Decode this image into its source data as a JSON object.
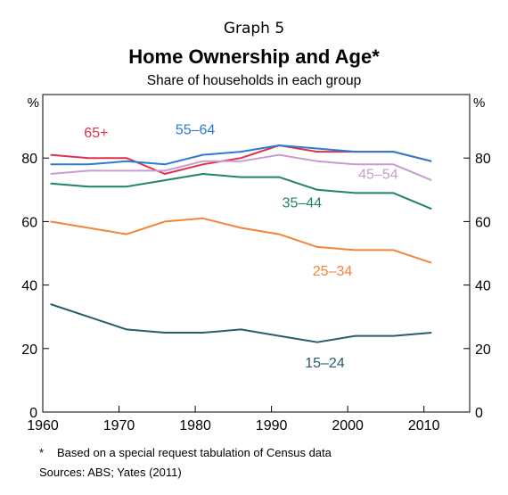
{
  "graph_label": "Graph 5",
  "chart_data": {
    "type": "line",
    "title": "Home Ownership and Age*",
    "subtitle": "Share of households in each group",
    "unit_left": "%",
    "unit_right": "%",
    "xlim": [
      1960,
      2016
    ],
    "ylim": [
      0,
      100
    ],
    "x_ticks": [
      1960,
      1970,
      1980,
      1990,
      2000,
      2010
    ],
    "y_ticks": [
      0,
      20,
      40,
      60,
      80
    ],
    "grid": false,
    "x": [
      1961,
      1966,
      1971,
      1976,
      1981,
      1986,
      1991,
      1996,
      2001,
      2006,
      2011
    ],
    "series": [
      {
        "name": "65+",
        "color": "#e0314b",
        "values": [
          81,
          80,
          80,
          75,
          78,
          80,
          84,
          82,
          82,
          82,
          79
        ]
      },
      {
        "name": "55–64",
        "color": "#2b7bd0",
        "values": [
          78,
          78,
          79,
          78,
          81,
          82,
          84,
          83,
          82,
          82,
          79
        ]
      },
      {
        "name": "45–54",
        "color": "#c99cd0",
        "values": [
          75,
          76,
          76,
          76,
          79,
          79,
          81,
          79,
          78,
          78,
          73
        ]
      },
      {
        "name": "35–44",
        "color": "#1f8465",
        "values": [
          72,
          71,
          71,
          73,
          75,
          74,
          74,
          70,
          69,
          69,
          64
        ]
      },
      {
        "name": "25–34",
        "color": "#f5833a",
        "values": [
          60,
          58,
          56,
          60,
          61,
          58,
          56,
          52,
          51,
          51,
          47
        ]
      },
      {
        "name": "15–24",
        "color": "#2c5b6c",
        "values": [
          34,
          30,
          26,
          25,
          25,
          26,
          24,
          22,
          24,
          24,
          25
        ]
      }
    ]
  },
  "footnote": {
    "marker": "*",
    "text": "Based on a special request tabulation of Census data"
  },
  "sources": "Sources:  ABS; Yates (2011)"
}
